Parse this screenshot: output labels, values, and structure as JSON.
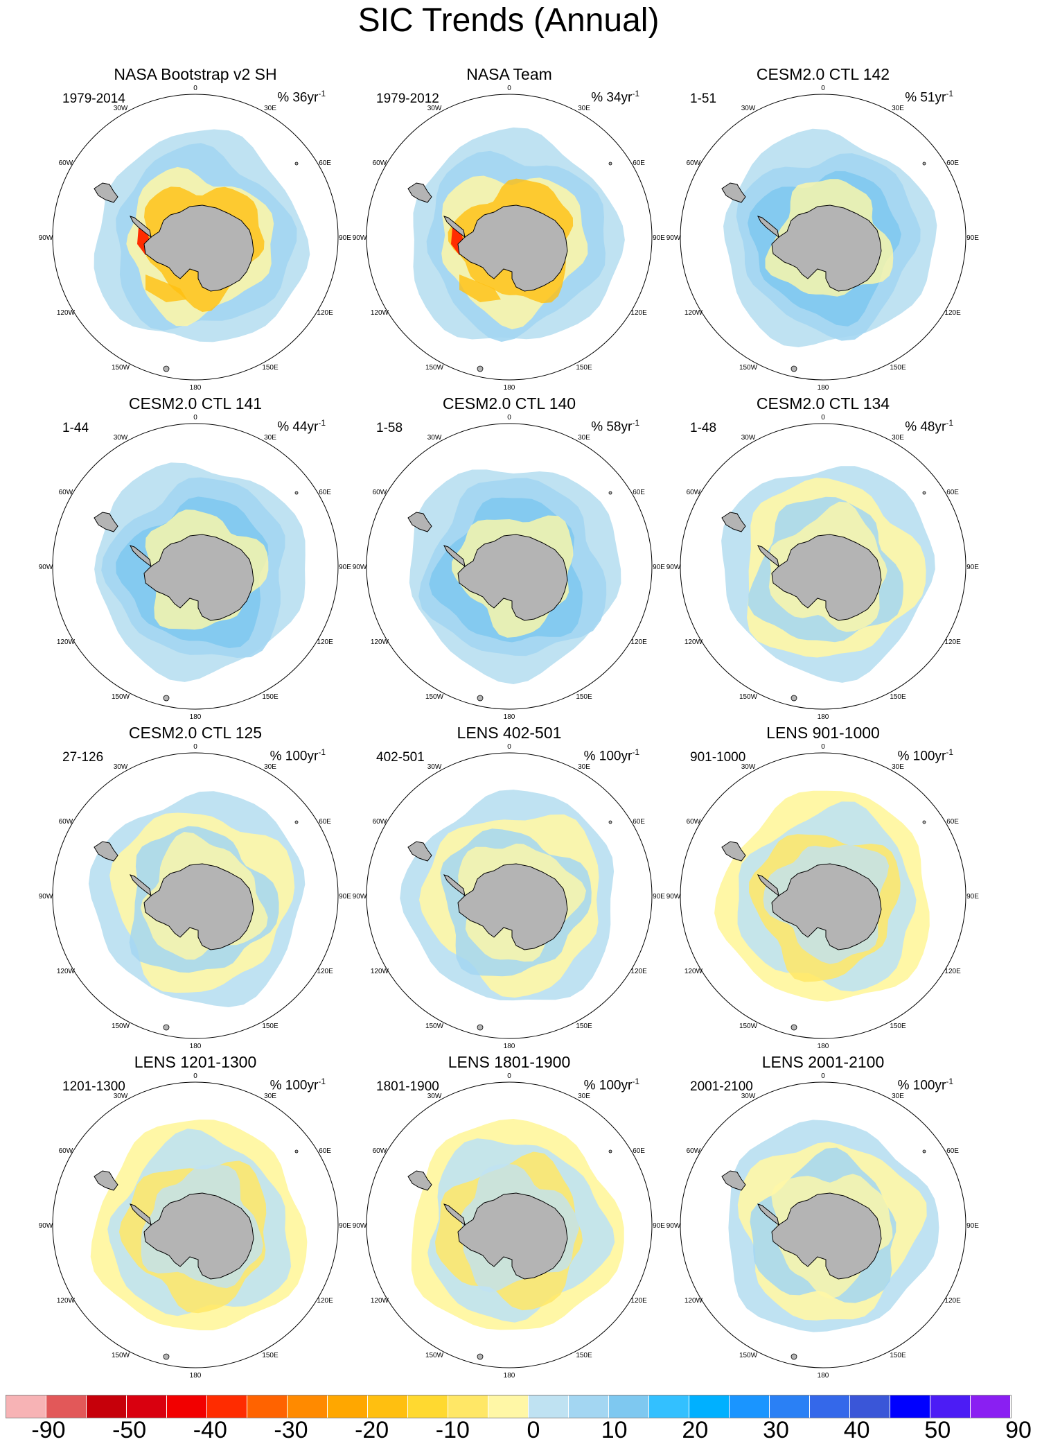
{
  "title": "SIC Trends (Annual)",
  "panels": [
    {
      "title": "NASA Bootstrap v2 SH",
      "period": "1979-2014",
      "unit_prefix": "% 36yr",
      "unit_exp": "-1",
      "pattern": "obs"
    },
    {
      "title": "NASA Team",
      "period": "1979-2012",
      "unit_prefix": "% 34yr",
      "unit_exp": "-1",
      "pattern": "obs"
    },
    {
      "title": "CESM2.0 CTL 142",
      "period": "1-51",
      "unit_prefix": "% 51yr",
      "unit_exp": "-1",
      "pattern": "blue"
    },
    {
      "title": "CESM2.0 CTL 141",
      "period": "1-44",
      "unit_prefix": "% 44yr",
      "unit_exp": "-1",
      "pattern": "blue"
    },
    {
      "title": "CESM2.0 CTL 140",
      "period": "1-58",
      "unit_prefix": "% 58yr",
      "unit_exp": "-1",
      "pattern": "blue"
    },
    {
      "title": "CESM2.0 CTL 134",
      "period": "1-48",
      "unit_prefix": "% 48yr",
      "unit_exp": "-1",
      "pattern": "mixed"
    },
    {
      "title": "CESM2.0 CTL 125",
      "period": "27-126",
      "unit_prefix": "% 100yr",
      "unit_exp": "-1",
      "pattern": "mixed"
    },
    {
      "title": "LENS 402-501",
      "period": "402-501",
      "unit_prefix": "% 100yr",
      "unit_exp": "-1",
      "pattern": "mixed"
    },
    {
      "title": "LENS 901-1000",
      "period": "901-1000",
      "unit_prefix": "% 100yr",
      "unit_exp": "-1",
      "pattern": "yellow"
    },
    {
      "title": "LENS 1201-1300",
      "period": "1201-1300",
      "unit_prefix": "% 100yr",
      "unit_exp": "-1",
      "pattern": "yellow"
    },
    {
      "title": "LENS 1801-1900",
      "period": "1801-1900",
      "unit_prefix": "% 100yr",
      "unit_exp": "-1",
      "pattern": "yellow"
    },
    {
      "title": "LENS 2001-2100",
      "period": "2001-2100",
      "unit_prefix": "% 100yr",
      "unit_exp": "-1",
      "pattern": "mixed"
    }
  ],
  "longitude_labels": [
    {
      "text": "0",
      "lon": 0
    },
    {
      "text": "30E",
      "lon": 30
    },
    {
      "text": "60E",
      "lon": 60
    },
    {
      "text": "90E",
      "lon": 90
    },
    {
      "text": "120E",
      "lon": 120
    },
    {
      "text": "150E",
      "lon": 150
    },
    {
      "text": "180",
      "lon": 180
    },
    {
      "text": "150W",
      "lon": 210
    },
    {
      "text": "120W",
      "lon": 240
    },
    {
      "text": "90W",
      "lon": 270
    },
    {
      "text": "60W",
      "lon": 300
    },
    {
      "text": "30W",
      "lon": 330
    }
  ],
  "colorbar": {
    "colors": [
      "#f7b3b5",
      "#e25859",
      "#c6000a",
      "#d9000f",
      "#f20000",
      "#ff2c00",
      "#ff6300",
      "#ff8a00",
      "#ffa700",
      "#ffbf10",
      "#ffd930",
      "#ffe766",
      "#fff7a6",
      "#bfe2f2",
      "#a3d6f2",
      "#7ec8f0",
      "#33c0ff",
      "#00b0ff",
      "#1a95ff",
      "#2a80f5",
      "#3468ea",
      "#3a56d8",
      "#0000ff",
      "#4c1cf5",
      "#8a1ff2"
    ],
    "labels": [
      "-90",
      "-50",
      "-40",
      "-30",
      "-20",
      "-10",
      "0",
      "10",
      "20",
      "30",
      "40",
      "50",
      "90"
    ]
  },
  "palette": {
    "land": "#b4b4b4",
    "blue_light": "#bfe2f2",
    "blue_mid": "#a3d6f2",
    "blue_dark": "#7ec8f0",
    "blue_deep": "#33c0ff",
    "yellow_light": "#fff7a6",
    "yellow_mid": "#ffe766",
    "orange": "#ffbf10",
    "red": "#ff2c00"
  }
}
